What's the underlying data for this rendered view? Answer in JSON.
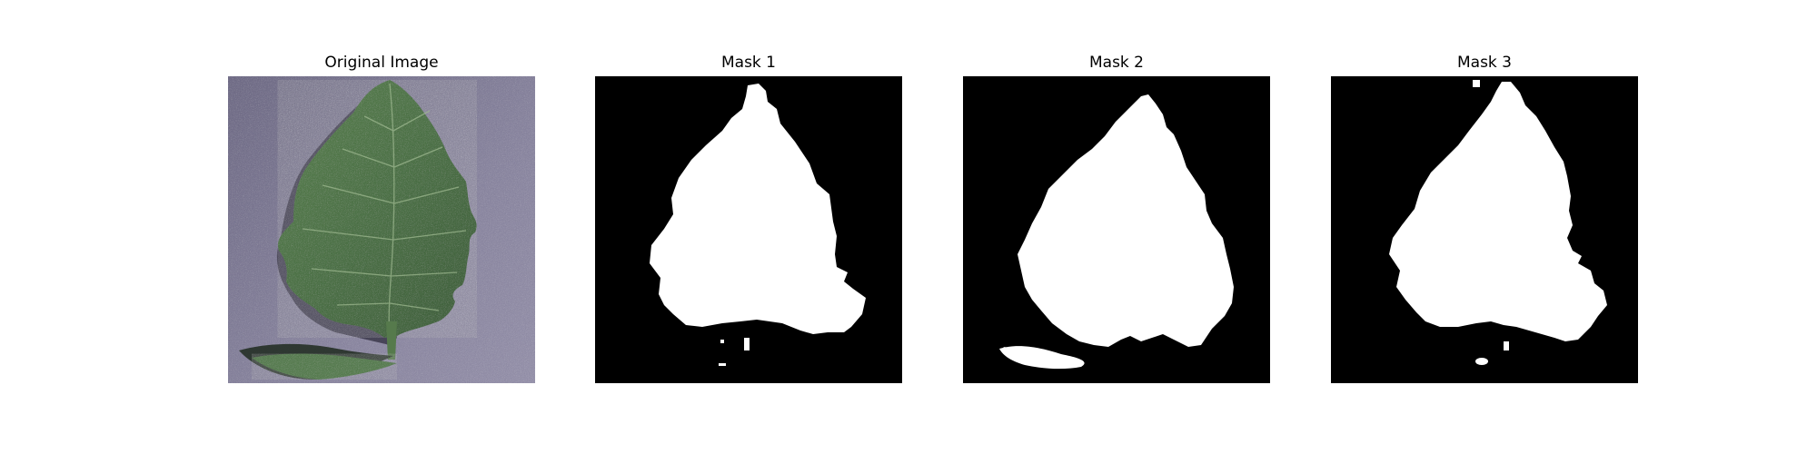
{
  "panels": [
    {
      "title": "Original Image"
    },
    {
      "title": "Mask 1"
    },
    {
      "title": "Mask 2"
    },
    {
      "title": "Mask 3"
    }
  ],
  "colors": {
    "background": "#ffffff",
    "mask_background": "#000000",
    "mask_foreground": "#ffffff",
    "leaf_green": "#4f7448",
    "backdrop": "#7f7a93"
  }
}
